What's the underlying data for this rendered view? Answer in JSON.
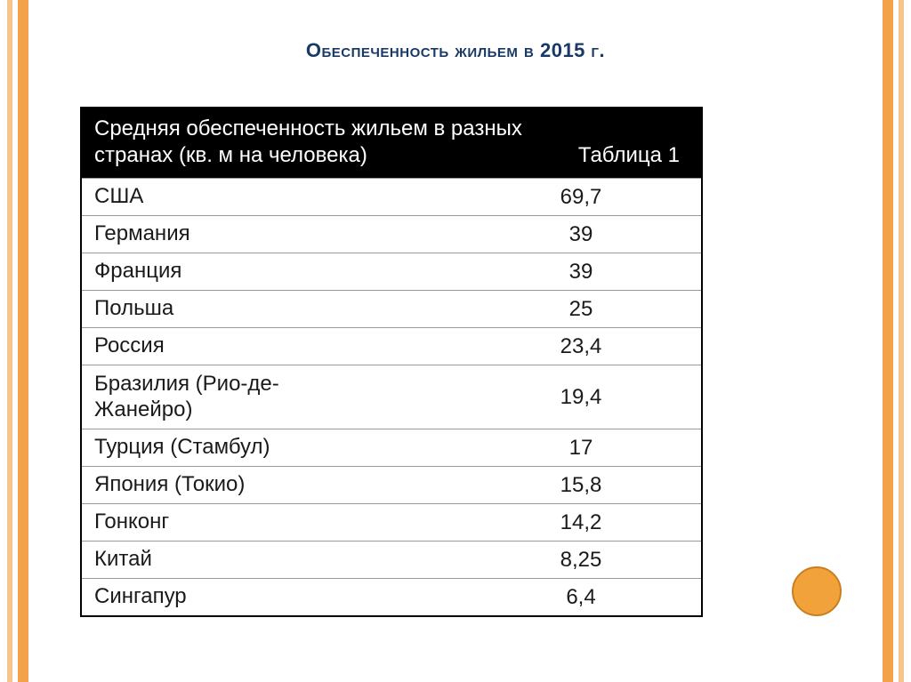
{
  "theme": {
    "stripe_outer": "#f7c58a",
    "stripe_inner": "#f3a14b",
    "title_color": "#1a3a66",
    "thead_bg": "#000000",
    "thead_fg": "#ffffff",
    "row_bg": "#ffffff",
    "row_border": "#9a9a9a",
    "cell_fg": "#1a1a1a",
    "circle_fill": "#f2a23a",
    "circle_border": "#c97f1f"
  },
  "title": "Обеспеченность жильем  в 2015 г.",
  "table": {
    "type": "table",
    "header_line1": "Средняя обеспеченность жильем в разных",
    "header_line2_left": "странах (кв. м на человека)",
    "header_line2_right": "Таблица 1",
    "columns": [
      "country",
      "value"
    ],
    "rows": [
      {
        "country": "США",
        "value": "69,7",
        "multiline": false
      },
      {
        "country": "Германия",
        "value": "39",
        "multiline": false
      },
      {
        "country": "Франция",
        "value": "39",
        "multiline": false
      },
      {
        "country": "Польша",
        "value": "25",
        "multiline": false
      },
      {
        "country": "Россия",
        "value": "23,4",
        "multiline": false
      },
      {
        "country": "Бразилия (Рио-де-\nЖанейро)",
        "value": "19,4",
        "multiline": true
      },
      {
        "country": "Турция (Стамбул)",
        "value": "17",
        "multiline": false
      },
      {
        "country": "Япония (Токио)",
        "value": "15,8",
        "multiline": false
      },
      {
        "country": "Гонконг",
        "value": "14,2",
        "multiline": false
      },
      {
        "country": "Китай",
        "value": "8,25",
        "multiline": false
      },
      {
        "country": "Сингапур",
        "value": "6,4",
        "multiline": false
      }
    ]
  }
}
